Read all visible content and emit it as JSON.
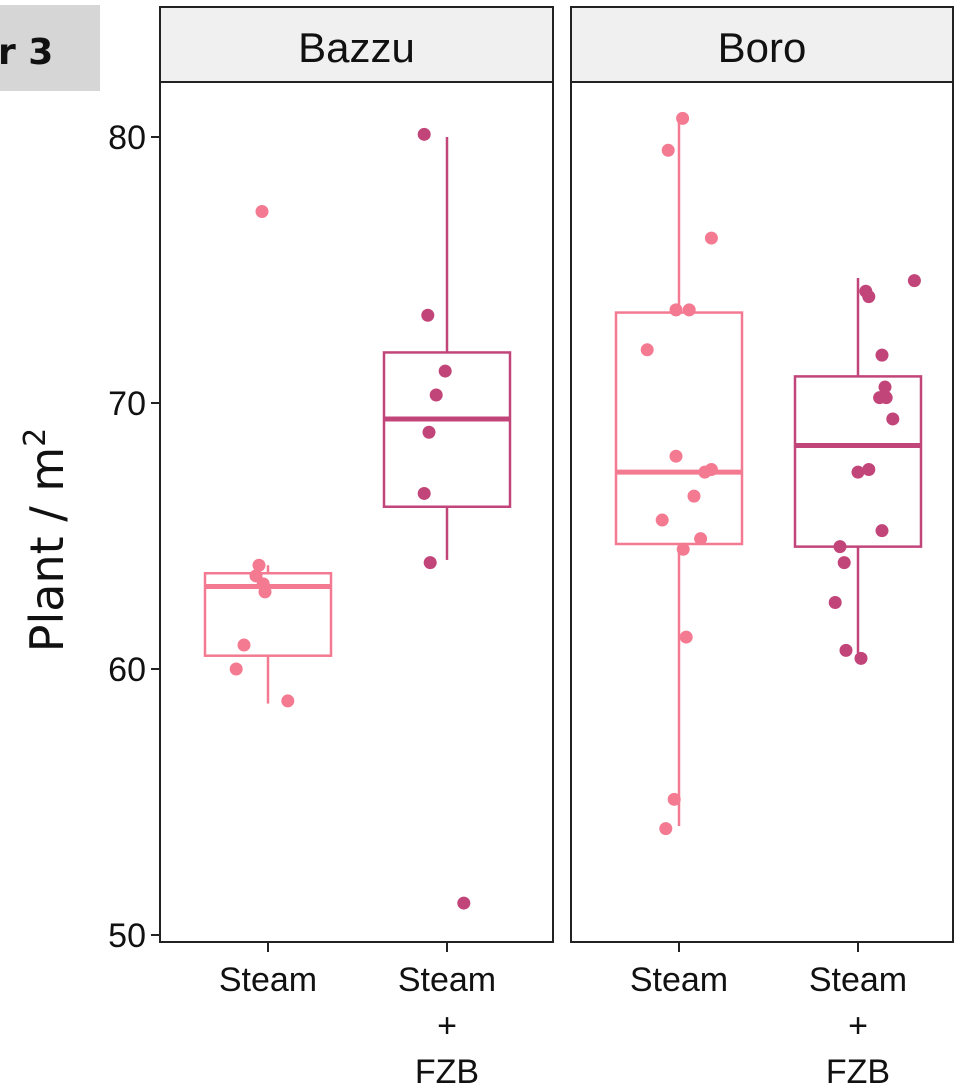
{
  "corner_label": "r 3",
  "chart_data": {
    "type": "boxplot",
    "ylabel": "Plant / m",
    "ylabel_superscript": "2",
    "ylim": [
      50,
      82
    ],
    "yticks": [
      "50",
      "60",
      "70",
      "80"
    ],
    "categories": [
      "Steam",
      "Steam + FZB"
    ],
    "category_label_lines": [
      [
        "Steam"
      ],
      [
        "Steam",
        "+",
        "FZB"
      ]
    ],
    "colors": {
      "Steam": "#f47a92",
      "Steam + FZB": "#c2457a"
    },
    "panels": [
      {
        "name": "Bazzu",
        "groups": [
          {
            "category": "Steam",
            "box": {
              "min": 58.7,
              "q1": 60.5,
              "median": 63.1,
              "q3": 63.6,
              "max": 63.9
            },
            "points": [
              {
                "j": -0.1,
                "y": 77.2
              },
              {
                "j": -0.15,
                "y": 63.9
              },
              {
                "j": -0.2,
                "y": 63.5
              },
              {
                "j": -0.08,
                "y": 63.2
              },
              {
                "j": -0.05,
                "y": 62.9
              },
              {
                "j": -0.4,
                "y": 60.9
              },
              {
                "j": -0.53,
                "y": 60.0
              },
              {
                "j": 0.33,
                "y": 58.8
              }
            ]
          },
          {
            "category": "Steam + FZB",
            "box": {
              "min": 64.1,
              "q1": 66.1,
              "median": 69.4,
              "q3": 71.9,
              "max": 80.0
            },
            "points": [
              {
                "j": -0.38,
                "y": 80.1
              },
              {
                "j": -0.32,
                "y": 73.3
              },
              {
                "j": -0.03,
                "y": 71.2
              },
              {
                "j": -0.18,
                "y": 70.3
              },
              {
                "j": -0.3,
                "y": 68.9
              },
              {
                "j": -0.38,
                "y": 66.6
              },
              {
                "j": -0.28,
                "y": 64.0
              },
              {
                "j": 0.28,
                "y": 51.2
              }
            ]
          }
        ]
      },
      {
        "name": "Boro",
        "groups": [
          {
            "category": "Steam",
            "box": {
              "min": 54.1,
              "q1": 64.7,
              "median": 67.4,
              "q3": 73.4,
              "max": 80.6
            },
            "points": [
              {
                "j": 0.06,
                "y": 80.7
              },
              {
                "j": -0.18,
                "y": 79.5
              },
              {
                "j": 0.54,
                "y": 76.2
              },
              {
                "j": -0.05,
                "y": 73.5
              },
              {
                "j": 0.17,
                "y": 73.5
              },
              {
                "j": -0.53,
                "y": 72.0
              },
              {
                "j": -0.05,
                "y": 68.0
              },
              {
                "j": 0.54,
                "y": 67.5
              },
              {
                "j": 0.43,
                "y": 67.4
              },
              {
                "j": 0.25,
                "y": 66.5
              },
              {
                "j": -0.28,
                "y": 65.6
              },
              {
                "j": 0.36,
                "y": 64.9
              },
              {
                "j": 0.07,
                "y": 64.5
              },
              {
                "j": 0.12,
                "y": 61.2
              },
              {
                "j": -0.08,
                "y": 55.1
              },
              {
                "j": -0.22,
                "y": 54.0
              }
            ]
          },
          {
            "category": "Steam + FZB",
            "box": {
              "min": 60.6,
              "q1": 64.6,
              "median": 68.4,
              "q3": 71.0,
              "max": 74.7
            },
            "points": [
              {
                "j": 0.94,
                "y": 74.6
              },
              {
                "j": 0.13,
                "y": 74.2
              },
              {
                "j": 0.18,
                "y": 74.0
              },
              {
                "j": 0.4,
                "y": 71.8
              },
              {
                "j": 0.45,
                "y": 70.6
              },
              {
                "j": 0.36,
                "y": 70.2
              },
              {
                "j": 0.47,
                "y": 70.2
              },
              {
                "j": 0.58,
                "y": 69.4
              },
              {
                "j": 0.0,
                "y": 67.4
              },
              {
                "j": 0.18,
                "y": 67.5
              },
              {
                "j": 0.4,
                "y": 65.2
              },
              {
                "j": -0.3,
                "y": 64.6
              },
              {
                "j": -0.23,
                "y": 64.0
              },
              {
                "j": -0.38,
                "y": 62.5
              },
              {
                "j": -0.2,
                "y": 60.7
              },
              {
                "j": 0.05,
                "y": 60.4
              }
            ]
          }
        ]
      }
    ]
  }
}
